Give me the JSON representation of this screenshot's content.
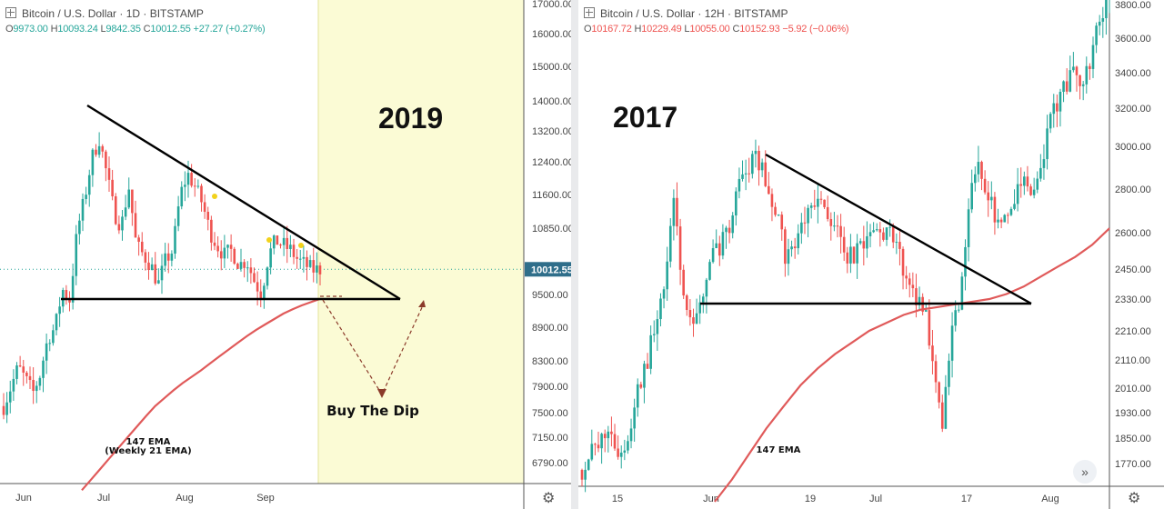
{
  "colors": {
    "up": "#26a69a",
    "down": "#ef5350",
    "ema": "#e05a5a",
    "highlight": "#fbfbd5",
    "line": "#000000"
  },
  "panels": [
    {
      "header": {
        "title": "Bitcoin / U.S. Dollar · 1D · BITSTAMP"
      },
      "ohlc": {
        "o_label": "O",
        "o": "9973.00",
        "h_label": "H",
        "h": "10093.24",
        "l_label": "L",
        "l": "9842.35",
        "c_label": "C",
        "c": "10012.55",
        "change": "+27.27 (+0.27%)"
      },
      "overlay_year": "2019",
      "ema_note_1": "147 EMA",
      "ema_note_2": "(Weekly 21 EMA)",
      "dip_label": "Buy The Dip",
      "price_tag": "10012.55",
      "settings_icon": "gear-icon"
    },
    {
      "header": {
        "title": "Bitcoin / U.S. Dollar · 12H · BITSTAMP"
      },
      "ohlc": {
        "o_label": "O",
        "o": "10167.72",
        "h_label": "H",
        "h": "10229.49",
        "l_label": "L",
        "l": "10055.00",
        "c_label": "C",
        "c": "10152.93",
        "change": "−5.92 (−0.06%)"
      },
      "overlay_year": "2017",
      "ema_note_1": "147 EMA",
      "scroll_icon": "chevron-right-double-icon",
      "settings_icon": "gear-icon"
    }
  ],
  "chart_data": [
    {
      "type": "line",
      "title": "Bitcoin / U.S. Dollar · 1D · BITSTAMP",
      "y_ticks": [
        "17000.00",
        "16000.00",
        "15000.00",
        "14000.00",
        "13200.00",
        "12400.00",
        "11600.00",
        "10850.00",
        "9500.00",
        "8900.00",
        "8300.00",
        "7900.00",
        "7500.00",
        "7150.00",
        "6790.00"
      ],
      "x_ticks": [
        "Jun",
        "Jul",
        "Aug",
        "Sep"
      ],
      "series": [
        {
          "name": "",
          "values": [
            7600,
            7900,
            8200,
            8000,
            7800,
            8100,
            8700,
            8900,
            9600,
            9400,
            10800,
            11500,
            12500,
            13000,
            12100,
            11200,
            10900,
            11800,
            10500,
            10300,
            10100,
            9700,
            10200,
            10400,
            11600,
            12100,
            11800,
            11400,
            10800,
            10500,
            10300,
            10400,
            10100,
            10200,
            9800,
            9500,
            10300,
            10600,
            10500,
            10400,
            10200,
            10100,
            10000,
            10012
          ]
        },
        {
          "name": "147 EMA",
          "values": [
            6400,
            6550,
            6700,
            6850,
            7000,
            7150,
            7300,
            7450,
            7600,
            7720,
            7840,
            7950,
            8050,
            8150,
            8260,
            8380,
            8500,
            8620,
            8740,
            8850,
            8950,
            9050,
            9150,
            9230,
            9300,
            9360,
            9420
          ]
        }
      ],
      "annotations": [
        "2019",
        "147 EMA",
        "(Weekly 21 EMA)",
        "Buy The Dip"
      ],
      "last_price": "10012.55",
      "grid": false
    },
    {
      "type": "line",
      "title": "Bitcoin / U.S. Dollar · 12H · BITSTAMP",
      "y_ticks": [
        "3800.00",
        "3600.00",
        "3400.00",
        "3200.00",
        "3000.00",
        "2800.00",
        "2600.00",
        "2450.00",
        "2330.00",
        "2210.00",
        "2110.00",
        "2010.00",
        "1930.00",
        "1850.00",
        "1770.00"
      ],
      "x_ticks": [
        "15",
        "Jun",
        "19",
        "Jul",
        "17",
        "Aug"
      ],
      "series": [
        {
          "name": "",
          "values": [
            1750,
            1800,
            1830,
            1900,
            1780,
            1850,
            2000,
            2100,
            2250,
            2400,
            2750,
            2300,
            2200,
            2350,
            2500,
            2550,
            2650,
            2850,
            2900,
            2950,
            2800,
            2700,
            2500,
            2550,
            2650,
            2700,
            2750,
            2650,
            2550,
            2500,
            2520,
            2580,
            2620,
            2600,
            2550,
            2400,
            2350,
            2300,
            2100,
            1900,
            2200,
            2350,
            2800,
            2900,
            2750,
            2650,
            2700,
            2800,
            2850,
            2750,
            3000,
            3200,
            3300,
            3400,
            3350,
            3500,
            3700,
            3850
          ]
        },
        {
          "name": "147 EMA",
          "values": [
            1650,
            1720,
            1800,
            1880,
            1950,
            2020,
            2080,
            2130,
            2170,
            2210,
            2240,
            2270,
            2290,
            2300,
            2310,
            2320,
            2330,
            2350,
            2380,
            2420,
            2460,
            2500,
            2550,
            2620
          ]
        }
      ],
      "annotations": [
        "2017",
        "147 EMA"
      ],
      "grid": false
    }
  ]
}
